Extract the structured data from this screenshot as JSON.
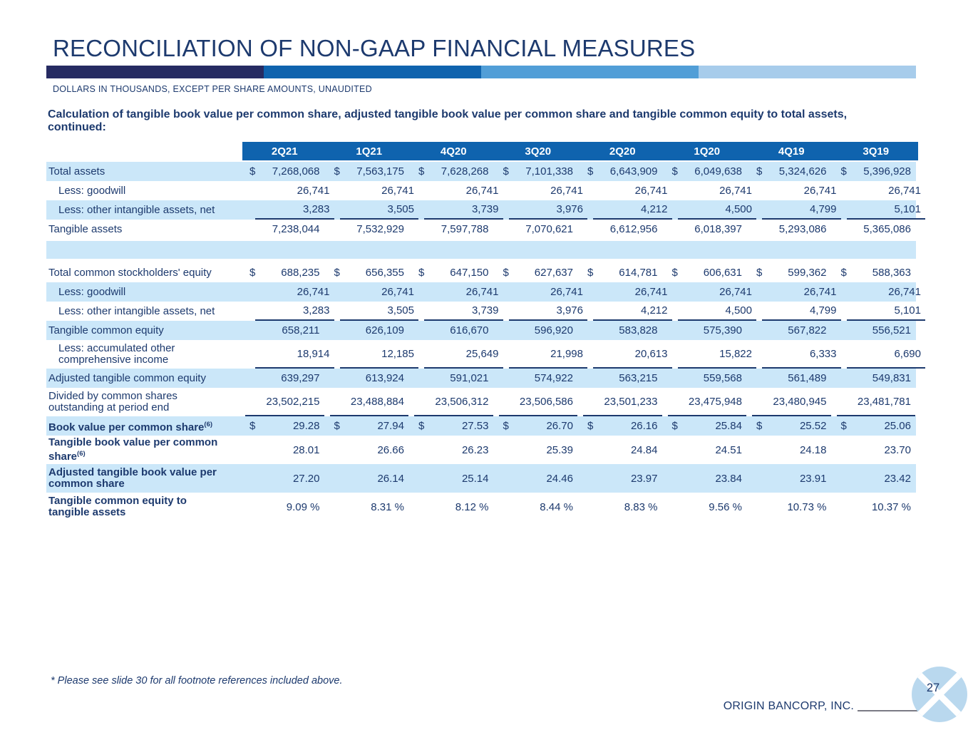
{
  "slide": {
    "title": "RECONCILIATION OF NON-GAAP FINANCIAL MEASURES",
    "subtitle": "DOLLARS IN THOUSANDS, EXCEPT PER SHARE AMOUNTS, UNAUDITED",
    "heading": {
      "line1": "Calculation of tangible book value per common share, adjusted tangible book value per common share and tangible common equity to total assets,",
      "line2": "continued:"
    },
    "footnote": "* Please see slide 30 for all footnote references included above.",
    "footer_company": "ORIGIN BANCORP, INC.",
    "page_number": "27"
  },
  "colors": {
    "navy_text": "#1d3a6e",
    "header_blue": "#0f63ae",
    "row_light_blue": "#cbe7f9",
    "bar_segment_1": "#262b62",
    "bar_segment_2": "#0f63ae",
    "bar_segment_3": "#519ed7",
    "bar_segment_4": "#a7cceb",
    "logo_blue": "#b9d8ee",
    "footer_line_gray": "#7a7a85"
  },
  "table": {
    "columns": [
      "2Q21",
      "1Q21",
      "4Q20",
      "3Q20",
      "2Q20",
      "1Q20",
      "4Q19",
      "3Q19"
    ],
    "rows": [
      {
        "label": "Total assets",
        "bg": "lt",
        "dollar": true,
        "values": [
          "7,268,068",
          "7,563,175",
          "7,628,268",
          "7,101,338",
          "6,643,909",
          "6,049,638",
          "5,324,626",
          "5,396,928"
        ]
      },
      {
        "label": "Less: goodwill",
        "indent": true,
        "bg": "w",
        "values": [
          "26,741",
          "26,741",
          "26,741",
          "26,741",
          "26,741",
          "26,741",
          "26,741",
          "26,741"
        ]
      },
      {
        "label": "Less: other intangible assets, net",
        "indent": true,
        "bg": "lt",
        "underline": true,
        "values": [
          "3,283",
          "3,505",
          "3,739",
          "3,976",
          "4,212",
          "4,500",
          "4,799",
          "5,101"
        ]
      },
      {
        "label": "Tangible assets",
        "bg": "w",
        "values": [
          "7,238,044",
          "7,532,929",
          "7,597,788",
          "7,070,621",
          "6,612,956",
          "6,018,397",
          "5,293,086",
          "5,365,086"
        ]
      },
      {
        "type": "spacer"
      },
      {
        "type": "gap"
      },
      {
        "label": "Total common stockholders' equity",
        "bg": "w",
        "dollar": true,
        "values": [
          "688,235",
          "656,355",
          "647,150",
          "627,637",
          "614,781",
          "606,631",
          "599,362",
          "588,363"
        ]
      },
      {
        "label": "Less: goodwill",
        "indent": true,
        "bg": "lt",
        "values": [
          "26,741",
          "26,741",
          "26,741",
          "26,741",
          "26,741",
          "26,741",
          "26,741",
          "26,741"
        ]
      },
      {
        "label": "Less: other intangible assets, net",
        "indent": true,
        "bg": "w",
        "underline": true,
        "values": [
          "3,283",
          "3,505",
          "3,739",
          "3,976",
          "4,212",
          "4,500",
          "4,799",
          "5,101"
        ]
      },
      {
        "label": "Tangible common equity",
        "bg": "lt",
        "values": [
          "658,211",
          "626,109",
          "616,670",
          "596,920",
          "583,828",
          "575,390",
          "567,822",
          "556,521"
        ]
      },
      {
        "label": "Less: accumulated other comprehensive income",
        "lines": [
          "Less: accumulated other",
          "comprehensive income"
        ],
        "indent": true,
        "bg": "w",
        "underline": true,
        "values": [
          "18,914",
          "12,185",
          "25,649",
          "21,998",
          "20,613",
          "15,822",
          "6,333",
          "6,690"
        ]
      },
      {
        "label": "Adjusted tangible common equity",
        "bg": "lt",
        "values": [
          "639,297",
          "613,924",
          "591,021",
          "574,922",
          "563,215",
          "559,568",
          "561,489",
          "549,831"
        ]
      },
      {
        "label": "Divided by common shares outstanding at period end",
        "lines": [
          "Divided by common shares",
          "outstanding at period end"
        ],
        "bg": "w",
        "underline": true,
        "values": [
          "23,502,215",
          "23,488,884",
          "23,506,312",
          "23,506,586",
          "23,501,233",
          "23,475,948",
          "23,480,945",
          "23,481,781"
        ]
      },
      {
        "label": "Book value per common share",
        "sup": "(6)",
        "bold": true,
        "bg": "lt",
        "dollar": true,
        "values": [
          "29.28",
          "27.94",
          "27.53",
          "26.70",
          "26.16",
          "25.84",
          "25.52",
          "25.06"
        ]
      },
      {
        "label": "Tangible book value per common share",
        "lines": [
          "Tangible book value per common",
          "share"
        ],
        "sup": "(6)",
        "bold": true,
        "bg": "w",
        "values": [
          "28.01",
          "26.66",
          "26.23",
          "25.39",
          "24.84",
          "24.51",
          "24.18",
          "23.70"
        ]
      },
      {
        "label": "Adjusted tangible book value per common share",
        "lines": [
          "Adjusted tangible book value per",
          "common share"
        ],
        "bold": true,
        "bg": "lt",
        "values": [
          "27.20",
          "26.14",
          "25.14",
          "24.46",
          "23.97",
          "23.84",
          "23.91",
          "23.42"
        ]
      },
      {
        "label": "Tangible common equity to tangible assets",
        "lines": [
          "Tangible common equity to",
          "tangible assets"
        ],
        "bold": true,
        "bg": "w",
        "values": [
          "9.09 %",
          "8.31 %",
          "8.12 %",
          "8.44 %",
          "8.83 %",
          "9.56 %",
          "10.73 %",
          "10.37 %"
        ]
      }
    ]
  }
}
